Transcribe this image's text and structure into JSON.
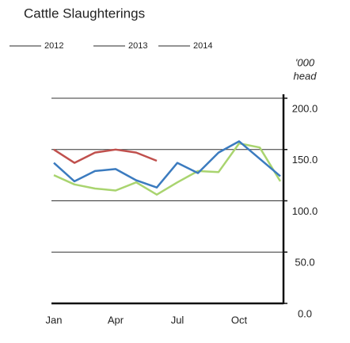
{
  "chart_data": {
    "type": "line",
    "title": "Cattle Slaughterings",
    "y_axis_label": [
      "'000",
      "head"
    ],
    "categories": [
      "Jan",
      null,
      null,
      "Apr",
      null,
      null,
      "Jul",
      null,
      null,
      "Oct",
      null,
      null
    ],
    "series": [
      {
        "name": "2012",
        "color": "#a9d46f",
        "values": [
          125,
          116,
          112,
          110,
          118,
          106,
          118,
          129,
          128,
          156,
          152,
          119
        ]
      },
      {
        "name": "2013",
        "color": "#3b7bbf",
        "values": [
          137,
          119,
          129,
          131,
          120,
          113,
          137,
          127,
          147,
          158,
          141,
          124
        ]
      },
      {
        "name": "2014",
        "color": "#c0504d",
        "values": [
          150,
          137,
          147,
          150,
          147,
          139,
          null,
          null,
          null,
          null,
          null,
          null
        ]
      }
    ],
    "ylim": [
      0,
      200
    ],
    "yticks": [
      {
        "value": 0,
        "label": "0.0"
      },
      {
        "value": 50,
        "label": "50.0"
      },
      {
        "value": 100,
        "label": "100.0"
      },
      {
        "value": 150,
        "label": "150.0"
      },
      {
        "value": 200,
        "label": "200.0"
      }
    ],
    "grid": true,
    "legend": "top"
  }
}
